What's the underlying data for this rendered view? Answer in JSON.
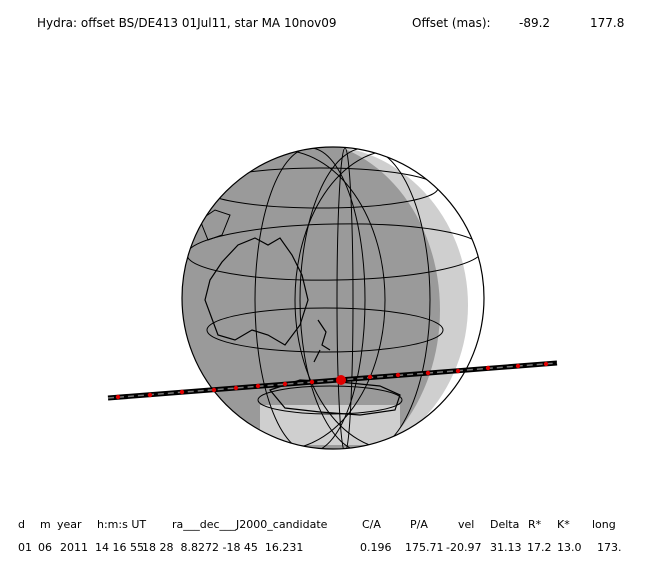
{
  "header": {
    "title": "Hydra: offset BS/DE413 01Jul11, star MA 10nov09",
    "offset_label": "Offset (mas):",
    "offset_x": "-89.2",
    "offset_y": "177.8"
  },
  "table": {
    "columns": [
      "d",
      "m",
      "year",
      "h:m:s UT",
      "ra___dec___J2000_candidate",
      "C/A",
      "P/A",
      "vel",
      "Delta",
      "R*",
      "K*",
      "long"
    ],
    "rows": [
      [
        "01",
        "06",
        "2011",
        "14 16 55.",
        "18 28  8.8272 -18 45  16.231",
        "0.196",
        "175.71",
        "-20.97",
        "31.13",
        "17.2",
        "13.0",
        "173."
      ]
    ]
  }
}
